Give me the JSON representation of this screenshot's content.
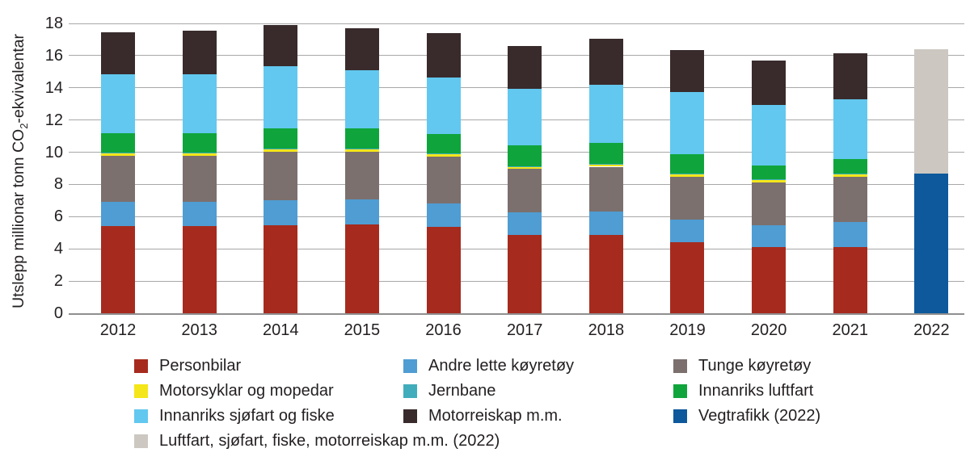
{
  "chart_data": {
    "type": "bar",
    "subtype": "stacked",
    "title": "",
    "xlabel": "",
    "ylabel": {
      "pre": "Utslepp millionar tonn CO",
      "sub": "2",
      "post": "-ekvivalentar"
    },
    "ylim": [
      0,
      18
    ],
    "ytick_step": 2,
    "y_ticks": [
      0,
      2,
      4,
      6,
      8,
      10,
      12,
      14,
      16,
      18
    ],
    "grid": "horizontal",
    "legend_position": "bottom",
    "categories": [
      "2012",
      "2013",
      "2014",
      "2015",
      "2016",
      "2017",
      "2018",
      "2019",
      "2020",
      "2021",
      "2022"
    ],
    "series": [
      {
        "name": "Personbilar",
        "color": "#a62b1e",
        "values": [
          5.4,
          5.4,
          5.45,
          5.5,
          5.35,
          4.85,
          4.85,
          4.4,
          4.1,
          4.1,
          0
        ]
      },
      {
        "name": "Andre lette køyretøy",
        "color": "#4f9dd3",
        "values": [
          1.5,
          1.5,
          1.55,
          1.55,
          1.45,
          1.4,
          1.45,
          1.4,
          1.35,
          1.55,
          0
        ]
      },
      {
        "name": "Tunge køyretøy",
        "color": "#7b706e",
        "values": [
          2.9,
          2.9,
          3.05,
          3.0,
          2.95,
          2.7,
          2.8,
          2.65,
          2.65,
          2.8,
          0
        ]
      },
      {
        "name": "Motorsyklar og mopedar",
        "color": "#f4e618",
        "values": [
          0.15,
          0.15,
          0.15,
          0.15,
          0.15,
          0.15,
          0.15,
          0.15,
          0.15,
          0.15,
          0
        ]
      },
      {
        "name": "Jernbane",
        "color": "#41adbc",
        "values": [
          0.05,
          0.05,
          0.05,
          0.05,
          0.05,
          0.05,
          0.05,
          0.05,
          0.05,
          0.05,
          0
        ]
      },
      {
        "name": "Innanriks luftfart",
        "color": "#0fa53c",
        "values": [
          1.2,
          1.2,
          1.25,
          1.25,
          1.2,
          1.3,
          1.3,
          1.25,
          0.9,
          0.95,
          0
        ]
      },
      {
        "name": "Innanriks sjøfart og fiske",
        "color": "#62c8ef",
        "values": [
          3.65,
          3.65,
          3.85,
          3.6,
          3.5,
          3.5,
          3.6,
          3.85,
          3.75,
          3.7,
          0
        ]
      },
      {
        "name": "Motorreiskap m.m.",
        "color": "#392b2c",
        "values": [
          2.6,
          2.7,
          2.55,
          2.6,
          2.75,
          2.65,
          2.85,
          2.6,
          2.75,
          2.85,
          0
        ]
      },
      {
        "name": "Vegtrafikk (2022)",
        "color": "#0d599c",
        "values": [
          0,
          0,
          0,
          0,
          0,
          0,
          0,
          0,
          0,
          0,
          8.65
        ]
      },
      {
        "name": "Luftfart, sjøfart, fiske, motorreiskap m.m. (2022)",
        "color": "#ccc8c1",
        "values": [
          0,
          0,
          0,
          0,
          0,
          0,
          0,
          0,
          0,
          0,
          7.75
        ]
      }
    ],
    "totals": [
      17.45,
      17.55,
      17.9,
      17.7,
      17.4,
      16.6,
      17.05,
      16.35,
      15.7,
      16.15,
      16.4
    ],
    "colors": {
      "gridline": "#a8a8a8",
      "axis_text": "#231f20",
      "background": "#ffffff"
    }
  }
}
